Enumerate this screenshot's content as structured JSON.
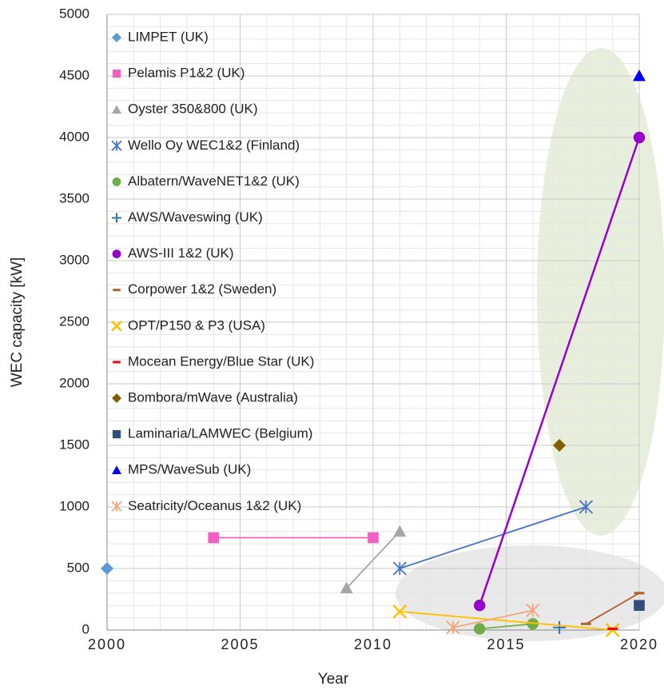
{
  "chart_data": {
    "type": "scatter",
    "x_label": "Year",
    "y_label": "WEC capacity [kW]",
    "xlim": [
      2000,
      2020
    ],
    "xticks": [
      2000,
      2005,
      2010,
      2015,
      2020
    ],
    "ylim": [
      0,
      5000
    ],
    "yticks": [
      0,
      500,
      1000,
      1500,
      2000,
      2500,
      3000,
      3500,
      4000,
      4500,
      5000
    ],
    "grid": true,
    "minor_grid": true,
    "legend": "upper left",
    "series": [
      {
        "name": "LIMPET (UK)",
        "color": "#5b9bd5",
        "marker": "diamond",
        "x": [
          2000
        ],
        "values": [
          500
        ]
      },
      {
        "name": "Pelamis P1&2 (UK)",
        "color": "#f260c4",
        "marker": "square",
        "x": [
          2004,
          2010
        ],
        "values": [
          750,
          750
        ]
      },
      {
        "name": "Oyster 350&800 (UK)",
        "color": "#a6a6a6",
        "marker": "triangle",
        "x": [
          2009,
          2011
        ],
        "values": [
          340,
          800
        ]
      },
      {
        "name": "Wello Oy WEC1&2 (Finland)",
        "color": "#4472c4",
        "marker": "asterisk",
        "x": [
          2011,
          2018
        ],
        "values": [
          500,
          1000
        ]
      },
      {
        "name": "Albatern/WaveNET1&2 (UK)",
        "color": "#70ad47",
        "marker": "circle",
        "x": [
          2014,
          2016
        ],
        "values": [
          10,
          50
        ]
      },
      {
        "name": "AWS/Waveswing (UK)",
        "color": "#2e75b6",
        "marker": "plus",
        "x": [
          2017
        ],
        "values": [
          20
        ]
      },
      {
        "name": "AWS-III 1&2 (UK)",
        "color": "#9900cc",
        "marker": "circle",
        "x": [
          2014,
          2020
        ],
        "values": [
          200,
          4000
        ]
      },
      {
        "name": "Corpower 1&2 (Sweden)",
        "color": "#b0602a",
        "marker": "dash",
        "x": [
          2018,
          2020
        ],
        "values": [
          50,
          300
        ]
      },
      {
        "name": "OPT/P150 & P3 (USA)",
        "color": "#ffc000",
        "marker": "x",
        "x": [
          2011,
          2019
        ],
        "values": [
          150,
          0
        ]
      },
      {
        "name": "Mocean Energy/Blue Star (UK)",
        "color": "#ff0000",
        "marker": "dash",
        "x": [
          2019
        ],
        "values": [
          10
        ]
      },
      {
        "name": "Bombora/mWave (Australia)",
        "color": "#7f6000",
        "marker": "diamond",
        "x": [
          2017
        ],
        "values": [
          1500
        ]
      },
      {
        "name": "Laminaria/LAMWEC (Belgium)",
        "color": "#2f4f7f",
        "marker": "square",
        "x": [
          2020
        ],
        "values": [
          200
        ]
      },
      {
        "name": "MPS/WaveSub (UK)",
        "color": "#0000ff",
        "marker": "triangle",
        "x": [
          2020
        ],
        "values": [
          4500
        ]
      },
      {
        "name": "Seatricity/Oceanus 1&2 (UK)",
        "color": "#f4a57a",
        "marker": "asterisk",
        "x": [
          2013,
          2016
        ],
        "values": [
          20,
          160
        ]
      }
    ]
  }
}
